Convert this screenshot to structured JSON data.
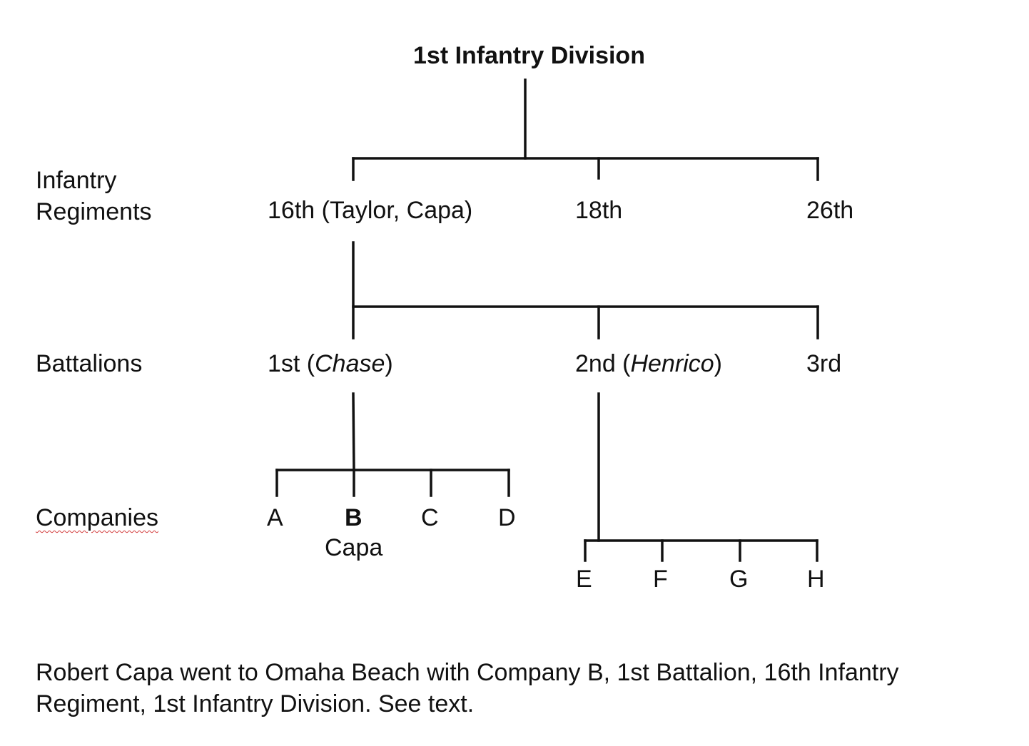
{
  "title": "1st Infantry Division",
  "row_labels": {
    "regiments": "Infantry\nRegiments",
    "battalions": "Battalions",
    "companies": "Companies"
  },
  "regiments": {
    "r16": "16th (Taylor, Capa)",
    "r18": "18th",
    "r26": "26th"
  },
  "battalions": {
    "b1_prefix": "1st (",
    "b1_ship": "Chase",
    "b1_suffix": ")",
    "b2_prefix": "2nd (",
    "b2_ship": "Henrico",
    "b2_suffix": ")",
    "b3": "3rd"
  },
  "companies": {
    "a": "A",
    "b": "B",
    "b_note": "Capa",
    "c": "C",
    "d": "D",
    "e": "E",
    "f": "F",
    "g": "G",
    "h": "H"
  },
  "caption": "Robert Capa went to Omaha Beach with Company B, 1st Battalion, 16th Infantry Regiment, 1st Infantry Division.  See text."
}
